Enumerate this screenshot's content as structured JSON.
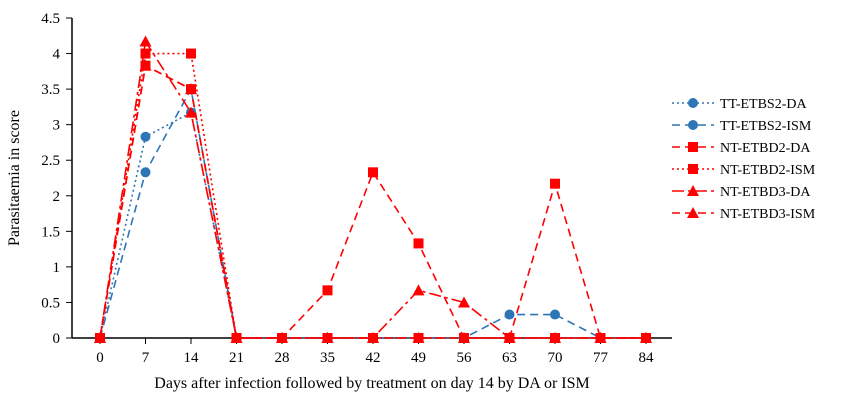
{
  "chart_data": {
    "type": "line",
    "xlabel": "Days after infection followed by treatment on day 14 by DA or ISM",
    "ylabel": "Parasitaemia in score",
    "x": [
      0,
      7,
      14,
      21,
      28,
      35,
      42,
      49,
      56,
      63,
      70,
      77,
      84
    ],
    "x_tick_labels": [
      "0",
      "7",
      "14",
      "21",
      "28",
      "35",
      "42",
      "49",
      "56",
      "63",
      "70",
      "77",
      "84"
    ],
    "ylim": [
      0,
      4.5
    ],
    "y_tick_labels": [
      "0",
      "0.5",
      "1",
      "1.5",
      "2",
      "2.5",
      "3",
      "3.5",
      "4",
      "4.5"
    ],
    "grid": false,
    "legend_position": "right",
    "series": [
      {
        "name": "TT-ETBS2-DA",
        "color": "#2E75B6",
        "dash": "dotted",
        "marker": "circle",
        "values": [
          0,
          2.83,
          3.17,
          0,
          0,
          0,
          0,
          0,
          0,
          0,
          0,
          0,
          0
        ]
      },
      {
        "name": "TT-ETBS2-ISM",
        "color": "#2E75B6",
        "dash": "dashed",
        "marker": "circle",
        "values": [
          0,
          2.33,
          3.5,
          0,
          0,
          0,
          0,
          0,
          0,
          0.33,
          0.33,
          0,
          0
        ]
      },
      {
        "name": "NT-ETBD2-DA",
        "color": "#FF0000",
        "dash": "dashed",
        "marker": "square",
        "values": [
          0,
          3.83,
          3.5,
          0,
          0,
          0.67,
          2.33,
          1.33,
          0,
          0,
          2.17,
          0,
          0
        ]
      },
      {
        "name": "NT-ETBD2-ISM",
        "color": "#FF0000",
        "dash": "dotted",
        "marker": "square",
        "values": [
          0,
          4,
          4,
          0,
          0,
          0,
          0,
          0,
          0,
          0,
          0,
          0,
          0
        ]
      },
      {
        "name": "NT-ETBD3-DA",
        "color": "#FF0000",
        "dash": "dashdot",
        "marker": "triangle",
        "values": [
          0,
          4.17,
          3.17,
          0,
          0,
          0,
          0,
          0.67,
          0.5,
          0,
          0,
          0,
          0
        ]
      },
      {
        "name": "NT-ETBD3-ISM",
        "color": "#FF0000",
        "dash": "dashed",
        "marker": "triangle",
        "values": [
          0,
          3.83,
          3.5,
          0,
          0,
          0,
          0,
          0,
          0,
          0,
          0,
          0,
          0
        ]
      }
    ]
  }
}
